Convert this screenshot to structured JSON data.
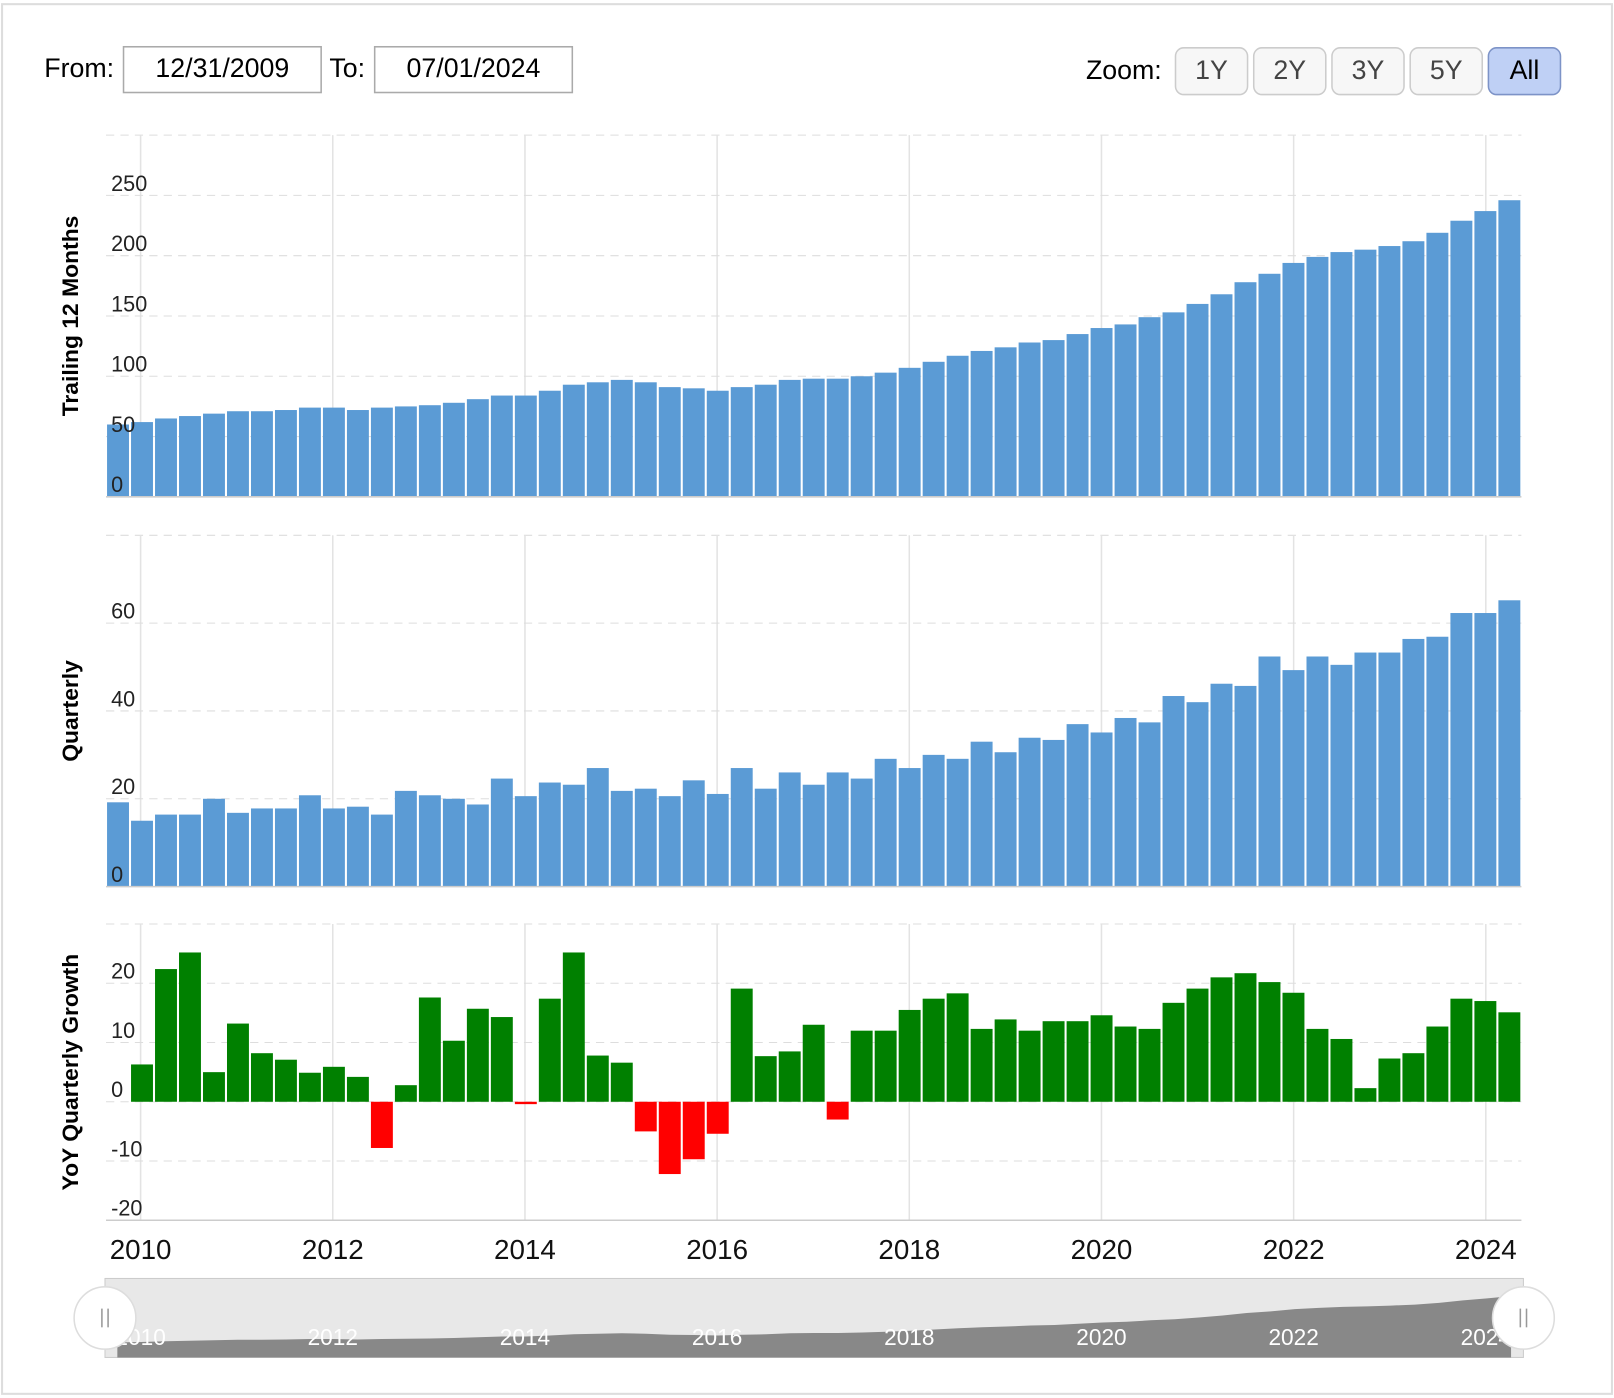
{
  "controls": {
    "from_label": "From:",
    "from": "12/31/2009",
    "to_label": "To:",
    "to": "07/01/2024",
    "zoom_label": "Zoom:",
    "zoom_buttons": [
      "1Y",
      "2Y",
      "3Y",
      "5Y",
      "All"
    ],
    "zoom_active": "All"
  },
  "chart_data": [
    {
      "type": "bar",
      "ylabel": "Trailing 12 Months",
      "color": "#5b9bd5",
      "grid": true,
      "xlim": [
        2009.64,
        2024.37
      ],
      "ylim": [
        0,
        300
      ],
      "yticks": [
        0,
        50,
        100,
        150,
        200,
        250
      ],
      "values": [
        60,
        62,
        65,
        67,
        69,
        71,
        71,
        72,
        74,
        74,
        72,
        74,
        75,
        76,
        78,
        81,
        84,
        84,
        88,
        93,
        95,
        97,
        95,
        91,
        90,
        88,
        91,
        93,
        97,
        98,
        98,
        100,
        103,
        107,
        112,
        117,
        121,
        124,
        128,
        130,
        135,
        140,
        143,
        149,
        153,
        160,
        168,
        178,
        185,
        194,
        199,
        203,
        205,
        208,
        212,
        219,
        229,
        237,
        246
      ]
    },
    {
      "type": "bar",
      "ylabel": "Quarterly",
      "color": "#5b9bd5",
      "grid": true,
      "xlim": [
        2009.64,
        2024.37
      ],
      "ylim": [
        0,
        80
      ],
      "yticks": [
        0,
        20,
        40,
        60
      ],
      "values": [
        19.2,
        15,
        16.4,
        16.4,
        20,
        16.8,
        17.8,
        17.8,
        20.8,
        17.8,
        18.2,
        16.4,
        21.8,
        20.8,
        20,
        18.7,
        24.6,
        20.6,
        23.7,
        23.2,
        27,
        21.8,
        22.3,
        20.6,
        24.2,
        21.1,
        27,
        22.3,
        26,
        23.2,
        26,
        24.6,
        29.1,
        27,
        30,
        29.1,
        33,
        30.6,
        33.9,
        33.4,
        37,
        35.1,
        38.4,
        37.4,
        43.4,
        42,
        46.2,
        45.7,
        52.4,
        49.3,
        52.4,
        50.5,
        53.3,
        53.3,
        56.4,
        56.9,
        62.3,
        62.3,
        65.2
      ]
    },
    {
      "type": "bar",
      "ylabel": "YoY Quarterly Growth",
      "color": "#008000",
      "negative_color": "#ff0000",
      "grid": true,
      "xlim": [
        2009.64,
        2024.37
      ],
      "xticks": [
        2010,
        2012,
        2014,
        2016,
        2018,
        2020,
        2022,
        2024
      ],
      "ylim": [
        -20,
        30
      ],
      "yticks": [
        -20,
        -10,
        0,
        10,
        20
      ],
      "values": [
        null,
        6.3,
        22.4,
        25.2,
        5,
        13.2,
        8.2,
        7.1,
        4.9,
        5.9,
        4.2,
        -7.8,
        2.8,
        17.6,
        10.3,
        15.7,
        14.3,
        -0.4,
        17.4,
        25.2,
        7.8,
        6.6,
        -5,
        -12.2,
        -9.7,
        -5.4,
        19.1,
        7.7,
        8.5,
        13,
        -3,
        12,
        12,
        15.5,
        17.4,
        18.3,
        12.3,
        13.9,
        12,
        13.6,
        13.6,
        14.6,
        12.7,
        12.3,
        16.7,
        19.1,
        21,
        21.7,
        20.2,
        18.4,
        12.3,
        10.6,
        2.3,
        7.3,
        8.2,
        12.7,
        17.4,
        17,
        15.1
      ]
    }
  ]
}
